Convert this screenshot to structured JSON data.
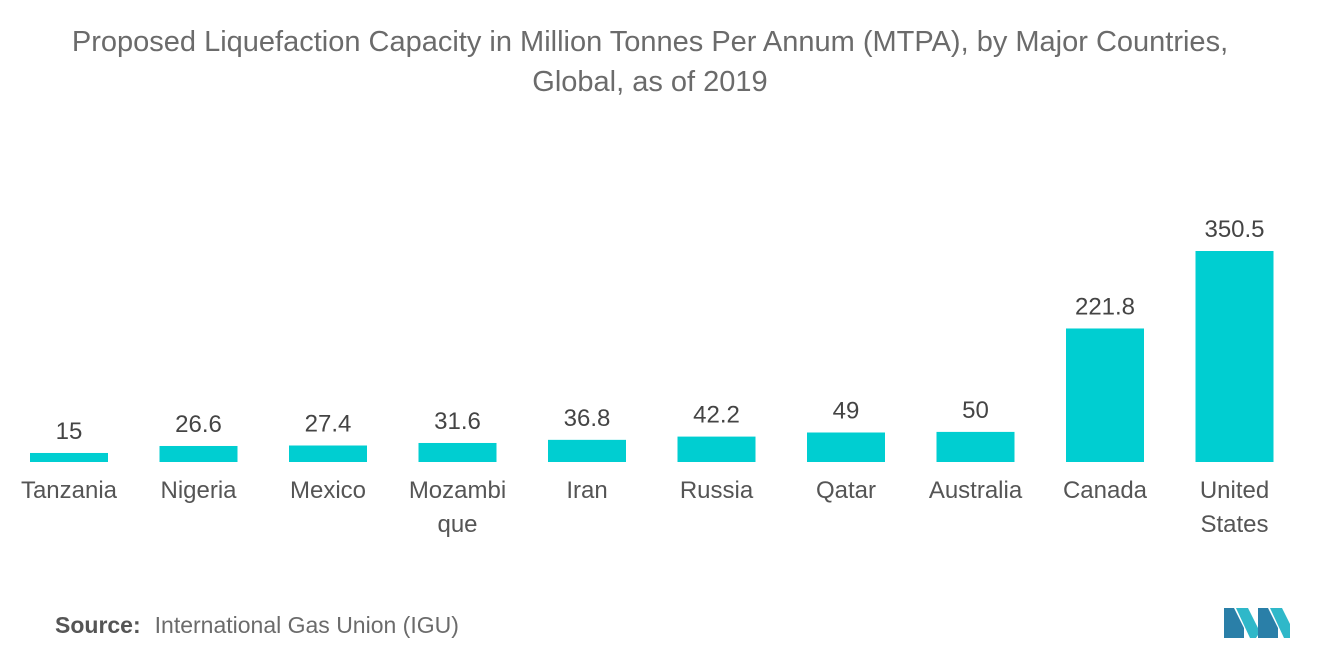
{
  "title_line1": "Proposed Liquefaction Capacity in Million Tonnes Per Annum (MTPA), by Major Countries,",
  "title_line2": "Global, as of 2019",
  "source": {
    "label": "Source:",
    "text": "International Gas Union (IGU)"
  },
  "colors": {
    "bar": "#00CED1",
    "text": "#555555"
  },
  "chart_data": {
    "type": "bar",
    "title": "Proposed Liquefaction Capacity in Million Tonnes Per Annum (MTPA), by Major Countries, Global, as of 2019",
    "categories": [
      [
        "Tanzania"
      ],
      [
        "Nigeria"
      ],
      [
        "Mexico"
      ],
      [
        "Mozambi",
        "que"
      ],
      [
        "Iran"
      ],
      [
        "Russia"
      ],
      [
        "Qatar"
      ],
      [
        "Australia"
      ],
      [
        "Canada"
      ],
      [
        "United",
        "States"
      ]
    ],
    "values": [
      15,
      26.6,
      27.4,
      31.6,
      36.8,
      42.2,
      49,
      50,
      221.8,
      350.5
    ],
    "value_labels": [
      "15",
      "26.6",
      "27.4",
      "31.6",
      "36.8",
      "42.2",
      "49",
      "50",
      "221.8",
      "350.5"
    ],
    "xlabel": "",
    "ylabel": "",
    "ylim": [
      0,
      350.5
    ],
    "grid": false,
    "legend": "none"
  }
}
